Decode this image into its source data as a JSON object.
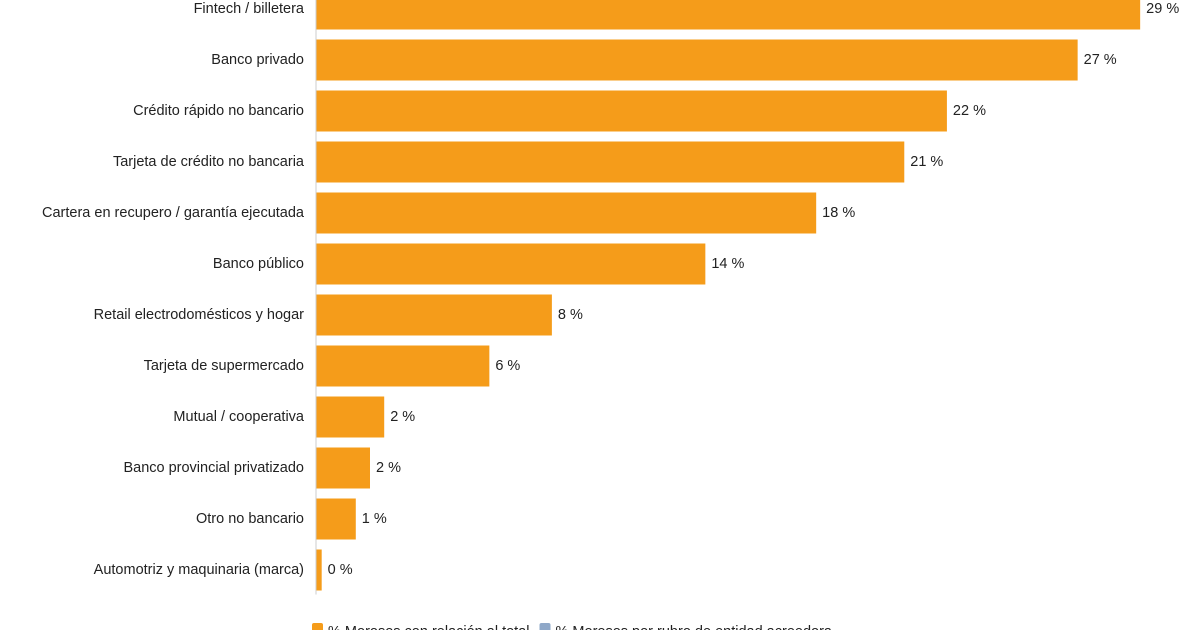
{
  "chart_data": {
    "type": "bar",
    "orientation": "horizontal",
    "categories": [
      "Fintech / billetera",
      "Banco privado",
      "Crédito rápido no bancario",
      "Tarjeta de crédito no bancaria",
      "Cartera en recupero / garantía ejecutada",
      "Banco público",
      "Retail electrodomésticos y hogar",
      "Tarjeta de supermercado",
      "Mutual / cooperativa",
      "Banco provincial privatizado",
      "Otro no bancario",
      "Automotriz y maquinaria (marca)"
    ],
    "series": [
      {
        "name": "% Morosos con relación al total",
        "color": "#f59c1a",
        "values": [
          29,
          26.8,
          22.2,
          20.7,
          17.6,
          13.7,
          8.3,
          6.1,
          2.4,
          1.9,
          1.4,
          0.2
        ],
        "value_labels": [
          "29 %",
          "27 %",
          "22 %",
          "21 %",
          "18 %",
          "14 %",
          "8 %",
          "6 %",
          "2 %",
          "2 %",
          "1 %",
          "0 %"
        ]
      }
    ],
    "legend": [
      {
        "name": "% Morosos con relación al total",
        "color": "#f59c1a"
      },
      {
        "name": "% Morosos por rubro de entidad acreedora",
        "color": "#8fa8c8"
      }
    ],
    "xlim": [
      0,
      31
    ]
  }
}
